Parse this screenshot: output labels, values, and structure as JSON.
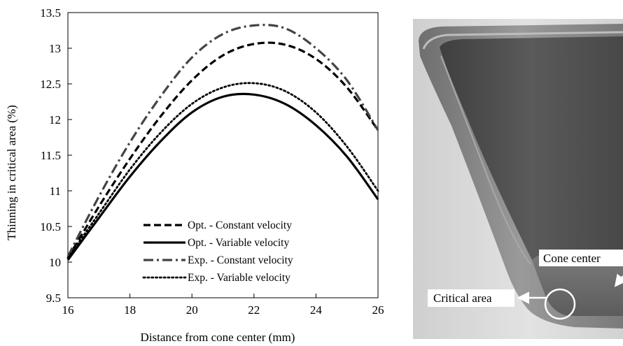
{
  "chart_data": {
    "type": "line",
    "title": "",
    "xlabel": "Distance from cone center (mm)",
    "ylabel": "Thinning in critical area (%)",
    "xlim": [
      16,
      26
    ],
    "ylim": [
      9.5,
      13.5
    ],
    "xticks": [
      "16",
      "18",
      "20",
      "22",
      "24",
      "26"
    ],
    "yticks": [
      "9.5",
      "10",
      "10.5",
      "11",
      "11.5",
      "12",
      "12.5",
      "13",
      "13.5"
    ],
    "grid": false,
    "legend_position": "bottom-center",
    "x": [
      16,
      17,
      18,
      19,
      20,
      21,
      22,
      23,
      24,
      25,
      26
    ],
    "series": [
      {
        "name": "Opt. - Constant velocity",
        "dash": "dashed",
        "color": "#000000",
        "values": [
          10.06,
          10.78,
          11.45,
          12.05,
          12.55,
          12.9,
          13.06,
          13.05,
          12.85,
          12.45,
          11.85
        ]
      },
      {
        "name": "Opt. - Variable velocity",
        "dash": "solid",
        "color": "#000000",
        "values": [
          10.03,
          10.62,
          11.2,
          11.7,
          12.1,
          12.32,
          12.35,
          12.22,
          11.92,
          11.48,
          10.88
        ]
      },
      {
        "name": "Exp. - Constant velocity",
        "dash": "dashdot",
        "color": "#444444",
        "values": [
          10.08,
          10.92,
          11.68,
          12.33,
          12.87,
          13.2,
          13.32,
          13.28,
          13.0,
          12.55,
          11.85
        ]
      },
      {
        "name": "Exp. - Variable velocity",
        "dash": "dotted",
        "color": "#000000",
        "values": [
          10.06,
          10.68,
          11.3,
          11.82,
          12.22,
          12.45,
          12.51,
          12.4,
          12.1,
          11.62,
          11.0
        ]
      }
    ]
  },
  "photo": {
    "label_cone_center": "Cone center",
    "label_critical_area": "Critical area"
  }
}
